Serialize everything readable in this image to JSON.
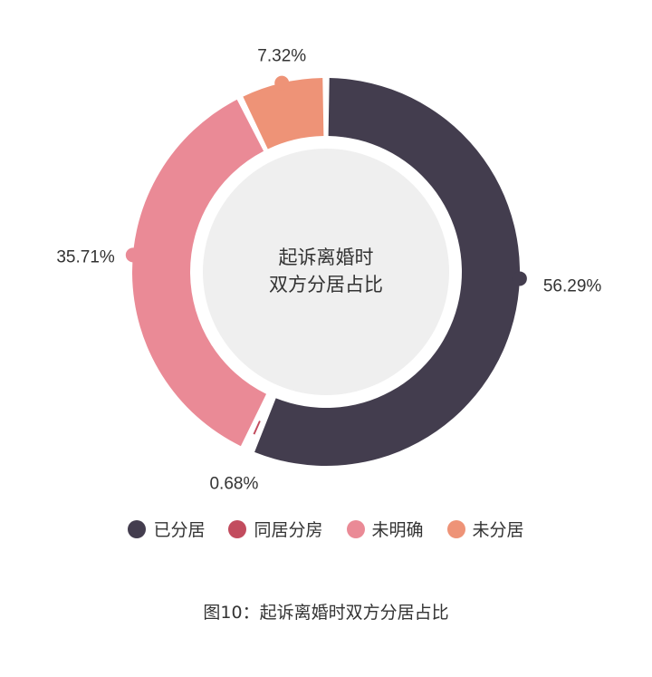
{
  "chart_data": {
    "type": "pie",
    "title": "起诉离婚时\n双方分居占比",
    "caption": "图10：起诉离婚时双方分居占比",
    "categories": [
      "已分居",
      "同居分房",
      "未明确",
      "未分居"
    ],
    "values": [
      56.29,
      0.68,
      35.71,
      7.32
    ],
    "labels": [
      "56.29%",
      "0.68%",
      "35.71%",
      "7.32%"
    ],
    "colors": [
      "#433d4e",
      "#c24c5e",
      "#ea8a96",
      "#ee9377"
    ],
    "legend_position": "bottom"
  },
  "center": {
    "line1": "起诉离婚时",
    "line2": "双方分居占比"
  },
  "caption": "图10：起诉离婚时双方分居占比",
  "legend": [
    {
      "label": "已分居",
      "color": "#433d4e"
    },
    {
      "label": "同居分房",
      "color": "#c24c5e"
    },
    {
      "label": "未明确",
      "color": "#ea8a96"
    },
    {
      "label": "未分居",
      "color": "#ee9377"
    }
  ]
}
